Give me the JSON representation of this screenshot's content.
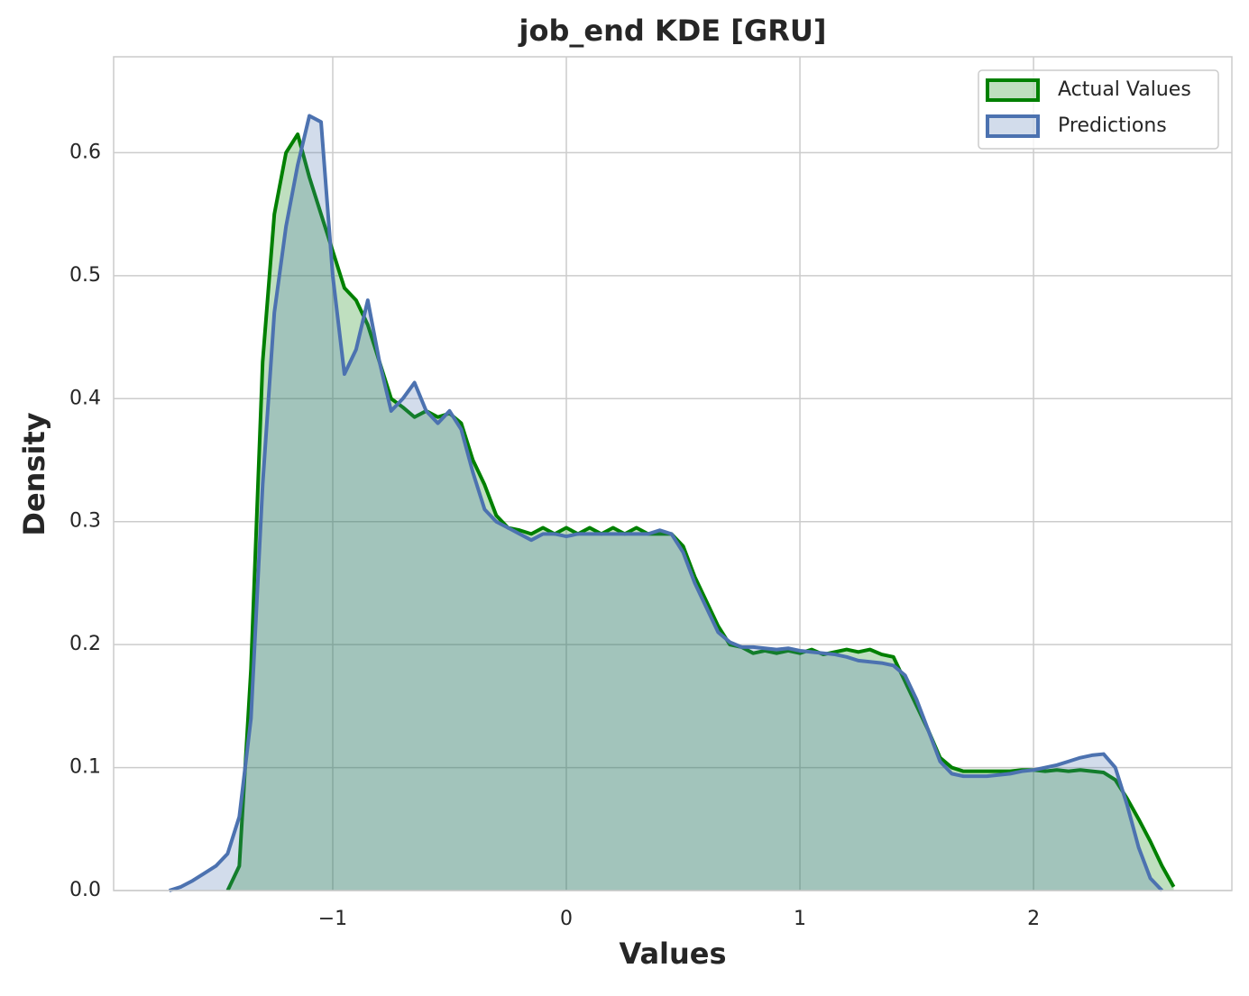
{
  "chart_data": {
    "type": "kde",
    "title": "job_end KDE [GRU]",
    "x_label": "Values",
    "y_label": "Density",
    "x": [
      -1.7,
      -1.65,
      -1.6,
      -1.55,
      -1.5,
      -1.45,
      -1.4,
      -1.35,
      -1.3,
      -1.25,
      -1.2,
      -1.15,
      -1.1,
      -1.05,
      -1.0,
      -0.95,
      -0.9,
      -0.85,
      -0.8,
      -0.75,
      -0.7,
      -0.65,
      -0.6,
      -0.55,
      -0.5,
      -0.45,
      -0.4,
      -0.35,
      -0.3,
      -0.25,
      -0.2,
      -0.15,
      -0.1,
      -0.05,
      0.0,
      0.05,
      0.1,
      0.15,
      0.2,
      0.25,
      0.3,
      0.35,
      0.4,
      0.45,
      0.5,
      0.55,
      0.6,
      0.65,
      0.7,
      0.75,
      0.8,
      0.85,
      0.9,
      0.95,
      1.0,
      1.05,
      1.1,
      1.15,
      1.2,
      1.25,
      1.3,
      1.35,
      1.4,
      1.45,
      1.5,
      1.55,
      1.6,
      1.65,
      1.7,
      1.75,
      1.8,
      1.85,
      1.9,
      1.95,
      2.0,
      2.05,
      2.1,
      2.15,
      2.2,
      2.25,
      2.3,
      2.35,
      2.4,
      2.45,
      2.5,
      2.55,
      2.6,
      2.65
    ],
    "series": [
      {
        "name": "Actual Values",
        "color": "#008000",
        "values": [
          null,
          null,
          null,
          null,
          null,
          0.0,
          0.02,
          0.18,
          0.43,
          0.55,
          0.6,
          0.615,
          0.58,
          0.55,
          0.52,
          0.49,
          0.48,
          0.46,
          0.43,
          0.4,
          0.393,
          0.385,
          0.39,
          0.385,
          0.388,
          0.38,
          0.35,
          0.33,
          0.305,
          0.295,
          0.293,
          0.29,
          0.295,
          0.29,
          0.295,
          0.29,
          0.295,
          0.29,
          0.295,
          0.29,
          0.295,
          0.29,
          0.29,
          0.29,
          0.28,
          0.255,
          0.235,
          0.215,
          0.2,
          0.198,
          0.193,
          0.195,
          0.193,
          0.195,
          0.193,
          0.196,
          0.192,
          0.194,
          0.196,
          0.194,
          0.196,
          0.192,
          0.19,
          0.17,
          0.15,
          0.13,
          0.108,
          0.1,
          0.097,
          0.097,
          0.097,
          0.097,
          0.097,
          0.098,
          0.098,
          0.097,
          0.098,
          0.097,
          0.098,
          0.097,
          0.096,
          0.09,
          0.075,
          0.058,
          0.04,
          0.02,
          0.003,
          null
        ]
      },
      {
        "name": "Predictions",
        "color": "#4c72b0",
        "values": [
          0.0,
          0.003,
          0.008,
          0.014,
          0.02,
          0.03,
          0.06,
          0.14,
          0.33,
          0.47,
          0.54,
          0.59,
          0.63,
          0.625,
          0.5,
          0.42,
          0.44,
          0.48,
          0.43,
          0.39,
          0.4,
          0.413,
          0.39,
          0.38,
          0.39,
          0.375,
          0.34,
          0.31,
          0.3,
          0.295,
          0.29,
          0.285,
          0.29,
          0.29,
          0.288,
          0.29,
          0.29,
          0.29,
          0.29,
          0.29,
          0.29,
          0.29,
          0.293,
          0.29,
          0.275,
          0.25,
          0.23,
          0.21,
          0.202,
          0.198,
          0.198,
          0.197,
          0.196,
          0.197,
          0.195,
          0.194,
          0.193,
          0.192,
          0.19,
          0.187,
          0.186,
          0.185,
          0.183,
          0.175,
          0.155,
          0.13,
          0.105,
          0.095,
          0.093,
          0.093,
          0.093,
          0.094,
          0.095,
          0.097,
          0.098,
          0.1,
          0.102,
          0.105,
          0.108,
          0.11,
          0.111,
          0.1,
          0.07,
          0.035,
          0.01,
          0.0,
          null,
          null
        ]
      }
    ],
    "xlim": [
      -1.938,
      2.849
    ],
    "ylim": [
      0,
      0.678
    ],
    "xticks": [
      {
        "value": -1,
        "label": "−1"
      },
      0,
      1,
      2
    ],
    "yticks": [
      {
        "value": 0,
        "label": "0.0"
      },
      0.1,
      0.2,
      0.3,
      0.4,
      0.5,
      0.6
    ],
    "grid": true,
    "legend": "upper right"
  }
}
